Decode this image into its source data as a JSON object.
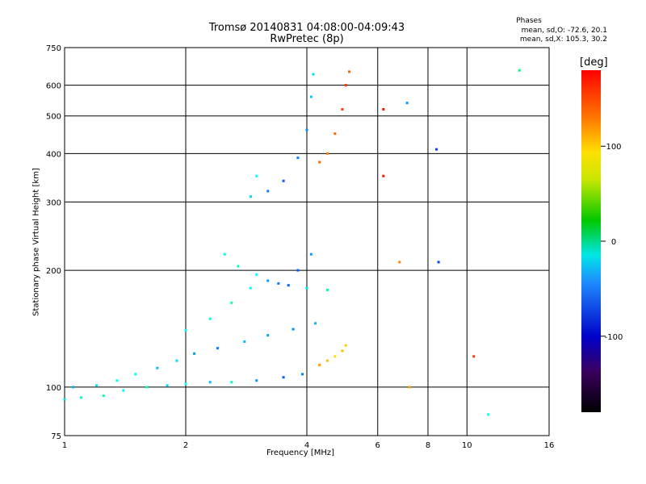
{
  "chart_data": {
    "type": "scatter",
    "title": "Tromsø 20140831 04:08:00-04:09:43",
    "subtitle": "RwPretec (8p)",
    "xlabel": "Frequency [MHz]",
    "ylabel": "Stationary phase Virtual Height [km]",
    "x_scale": "log",
    "y_scale": "log",
    "xlim": [
      1,
      16
    ],
    "ylim": [
      75,
      750
    ],
    "x_ticks": [
      1,
      2,
      4,
      6,
      8,
      10,
      16
    ],
    "y_ticks": [
      75,
      100,
      200,
      300,
      400,
      500,
      600,
      750
    ],
    "grid": true,
    "colorbar": {
      "label": "[deg]",
      "range": [
        -180,
        180
      ],
      "ticks": [
        100,
        0,
        -100
      ]
    },
    "phases": {
      "header": "Phases",
      "line_o": "mean, sd,O: -72.6, 20.1",
      "line_x": "mean, sd,X: 105.3, 30.2"
    },
    "series": [
      {
        "points": [
          [
            1.0,
            93,
            -70
          ],
          [
            1.1,
            94,
            -40
          ],
          [
            1.25,
            95,
            -35
          ],
          [
            1.4,
            98,
            -60
          ],
          [
            1.6,
            100,
            -40
          ],
          [
            1.8,
            101,
            -70
          ],
          [
            2.0,
            102,
            -60
          ],
          [
            2.3,
            103,
            -80
          ],
          [
            2.6,
            103,
            -40
          ],
          [
            3.0,
            104,
            -90
          ],
          [
            3.5,
            106,
            -110
          ],
          [
            3.9,
            108,
            -100
          ]
        ]
      },
      {
        "points": [
          [
            1.05,
            100,
            -85
          ],
          [
            1.2,
            101,
            -70
          ],
          [
            1.35,
            104,
            -55
          ],
          [
            1.5,
            108,
            -60
          ],
          [
            1.7,
            112,
            -80
          ],
          [
            1.9,
            117,
            -70
          ],
          [
            2.1,
            122,
            -90
          ],
          [
            2.4,
            126,
            -100
          ],
          [
            2.8,
            131,
            -80
          ],
          [
            3.2,
            136,
            -90
          ],
          [
            3.7,
            141,
            -95
          ],
          [
            4.2,
            146,
            -85
          ]
        ]
      },
      {
        "points": [
          [
            2.0,
            140,
            -60
          ],
          [
            2.3,
            150,
            -50
          ],
          [
            2.6,
            165,
            -40
          ],
          [
            2.9,
            180,
            -60
          ],
          [
            3.2,
            188,
            -90
          ],
          [
            3.6,
            183,
            -110
          ],
          [
            4.0,
            180,
            -70
          ],
          [
            4.5,
            178,
            -40
          ]
        ]
      },
      {
        "points": [
          [
            2.5,
            220,
            -50
          ],
          [
            2.7,
            205,
            -40
          ],
          [
            3.0,
            195,
            -60
          ],
          [
            3.4,
            185,
            -100
          ],
          [
            3.8,
            200,
            -110
          ],
          [
            4.1,
            220,
            -90
          ]
        ]
      },
      {
        "points": [
          [
            4.3,
            114,
            130
          ],
          [
            4.5,
            117,
            120
          ],
          [
            4.7,
            120,
            110
          ],
          [
            4.9,
            124,
            120
          ],
          [
            5.0,
            128,
            115
          ]
        ]
      },
      {
        "points": [
          [
            2.9,
            310,
            -70
          ],
          [
            3.0,
            350,
            -60
          ],
          [
            3.2,
            320,
            -100
          ],
          [
            3.5,
            340,
            -110
          ],
          [
            3.8,
            390,
            -100
          ],
          [
            4.0,
            460,
            -95
          ],
          [
            4.1,
            560,
            -80
          ],
          [
            4.15,
            640,
            -70
          ]
        ]
      },
      {
        "points": [
          [
            4.3,
            380,
            150
          ],
          [
            4.5,
            400,
            140
          ],
          [
            4.7,
            450,
            150
          ],
          [
            4.9,
            520,
            160
          ],
          [
            5.0,
            600,
            165
          ],
          [
            5.1,
            650,
            150
          ]
        ]
      },
      {
        "points": [
          [
            6.2,
            520,
            175
          ],
          [
            7.1,
            540,
            -90
          ],
          [
            8.4,
            410,
            -120
          ],
          [
            8.5,
            210,
            -120
          ],
          [
            10.4,
            120,
            165
          ],
          [
            11.3,
            85,
            -60
          ],
          [
            13.5,
            655,
            -20
          ],
          [
            7.2,
            100,
            130
          ],
          [
            6.2,
            350,
            175
          ],
          [
            6.8,
            210,
            140
          ]
        ]
      }
    ]
  }
}
